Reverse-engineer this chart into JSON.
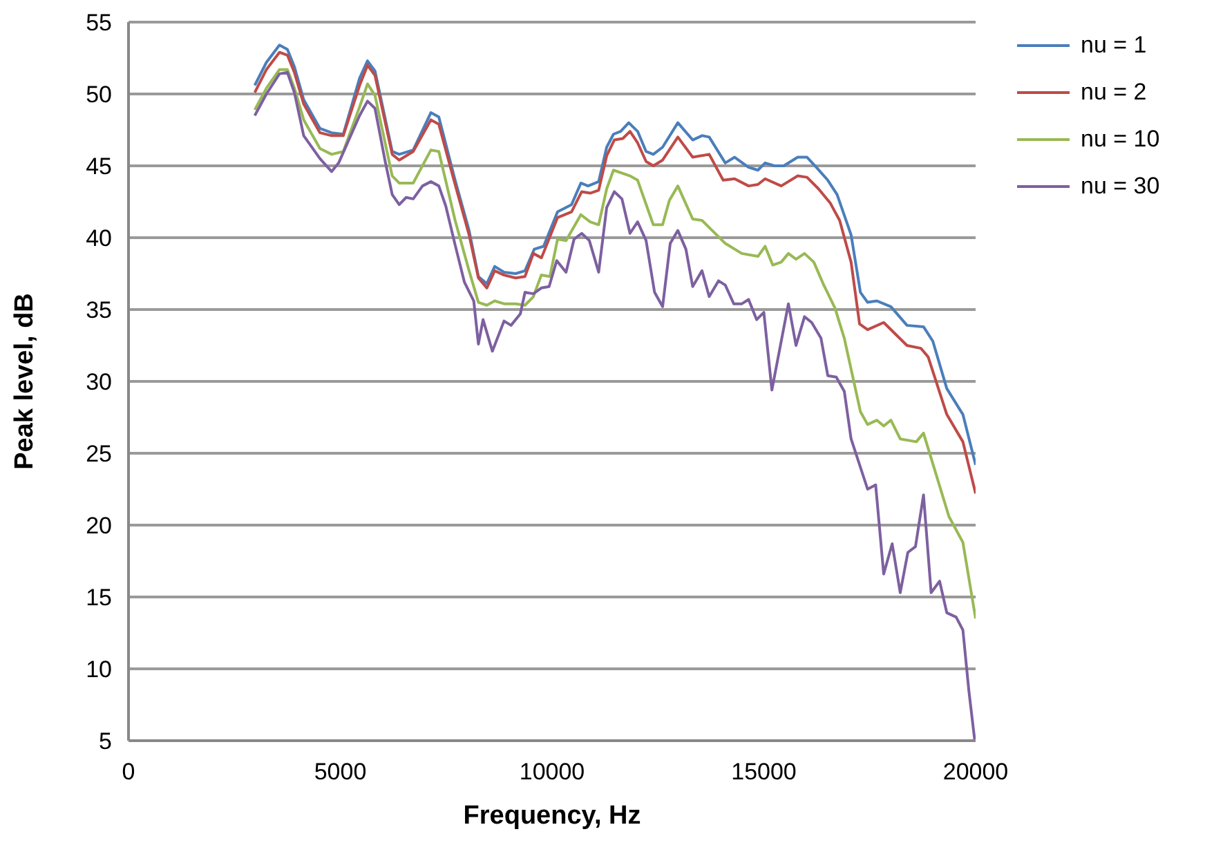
{
  "chart_data": {
    "type": "line",
    "xlabel": "Frequency, Hz",
    "ylabel": "Peak level, dB",
    "xlim": [
      0,
      20000
    ],
    "xticks": [
      0,
      5000,
      10000,
      15000,
      20000
    ],
    "ylim": [
      5,
      55
    ],
    "yticks": [
      5,
      10,
      15,
      20,
      25,
      30,
      35,
      40,
      45,
      50,
      55
    ],
    "grid": "y",
    "legend": "right",
    "series": [
      {
        "name": "nu = 1",
        "color": "#4a7ebb",
        "x": [
          2981,
          3256,
          3564,
          3751,
          3916,
          4136,
          4521,
          4796,
          5071,
          5456,
          5643,
          5819,
          6226,
          6391,
          6721,
          7139,
          7326,
          7711,
          8041,
          8261,
          8459,
          8646,
          8866,
          9141,
          9361,
          9580,
          9800,
          10130,
          10460,
          10680,
          10850,
          11100,
          11290,
          11450,
          11620,
          11810,
          12020,
          12220,
          12390,
          12610,
          12970,
          13320,
          13540,
          13710,
          14090,
          14310,
          14640,
          14860,
          15030,
          15250,
          15470,
          15800,
          16020,
          16240,
          16510,
          16730,
          17060,
          17280,
          17450,
          17670,
          18000,
          18380,
          18770,
          18990,
          19320,
          19700,
          20000
        ],
        "values": [
          50.6,
          52.2,
          53.4,
          53.1,
          51.9,
          49.6,
          47.6,
          47.3,
          47.2,
          51.1,
          52.3,
          51.6,
          46.0,
          45.8,
          46.1,
          48.7,
          48.4,
          44.0,
          40.5,
          37.3,
          36.8,
          38.0,
          37.6,
          37.5,
          37.7,
          39.2,
          39.4,
          41.8,
          42.3,
          43.8,
          43.6,
          43.9,
          46.3,
          47.2,
          47.4,
          48.0,
          47.4,
          46.0,
          45.8,
          46.3,
          48.0,
          46.8,
          47.1,
          47.0,
          45.2,
          45.6,
          44.9,
          44.7,
          45.2,
          45.0,
          45.0,
          45.6,
          45.6,
          44.9,
          44.0,
          43.0,
          40.2,
          36.2,
          35.5,
          35.6,
          35.2,
          33.9,
          33.8,
          32.8,
          29.5,
          27.7,
          24.2
        ]
      },
      {
        "name": "nu = 2",
        "color": "#be4b48",
        "x": [
          2981,
          3256,
          3564,
          3751,
          3916,
          4136,
          4521,
          4796,
          5071,
          5456,
          5643,
          5819,
          6226,
          6391,
          6721,
          7139,
          7326,
          7711,
          8041,
          8261,
          8459,
          8646,
          8866,
          9141,
          9361,
          9559,
          9750,
          10130,
          10460,
          10700,
          10900,
          11100,
          11290,
          11470,
          11670,
          11840,
          12020,
          12220,
          12390,
          12610,
          12970,
          13320,
          13710,
          14040,
          14310,
          14640,
          14860,
          15030,
          15410,
          15800,
          16020,
          16290,
          16570,
          16790,
          17060,
          17260,
          17450,
          17830,
          18380,
          18710,
          18880,
          19320,
          19700,
          20000
        ],
        "values": [
          50.1,
          51.7,
          52.9,
          52.7,
          51.5,
          49.3,
          47.3,
          47.1,
          47.1,
          50.6,
          52.0,
          51.3,
          45.8,
          45.4,
          46.0,
          48.2,
          47.9,
          43.7,
          40.2,
          37.2,
          36.5,
          37.7,
          37.4,
          37.2,
          37.3,
          38.9,
          38.6,
          41.4,
          41.8,
          43.2,
          43.1,
          43.3,
          45.7,
          46.8,
          46.9,
          47.4,
          46.6,
          45.3,
          45.0,
          45.4,
          47.0,
          45.6,
          45.8,
          44.0,
          44.1,
          43.6,
          43.7,
          44.1,
          43.6,
          44.3,
          44.2,
          43.4,
          42.4,
          41.2,
          38.3,
          34.0,
          33.6,
          34.1,
          32.5,
          32.3,
          31.7,
          27.7,
          25.8,
          22.2
        ]
      },
      {
        "name": "nu = 10",
        "color": "#98b954",
        "x": [
          2981,
          3256,
          3564,
          3751,
          3916,
          4136,
          4521,
          4796,
          5071,
          5456,
          5643,
          5819,
          6226,
          6391,
          6721,
          7139,
          7326,
          7711,
          8041,
          8261,
          8459,
          8646,
          8866,
          9141,
          9361,
          9559,
          9746,
          9950,
          10130,
          10330,
          10680,
          10900,
          11100,
          11290,
          11450,
          11840,
          12020,
          12390,
          12610,
          12770,
          12970,
          13320,
          13540,
          14090,
          14480,
          14860,
          15030,
          15210,
          15410,
          15580,
          15760,
          15960,
          16180,
          16400,
          16680,
          16900,
          17280,
          17450,
          17670,
          17830,
          18000,
          18220,
          18600,
          18770,
          19370,
          19700,
          20000
        ],
        "values": [
          48.9,
          50.4,
          51.7,
          51.7,
          50.4,
          48.2,
          46.2,
          45.8,
          46.0,
          49.1,
          50.7,
          49.9,
          44.3,
          43.8,
          43.8,
          46.1,
          46.0,
          41.2,
          37.7,
          35.5,
          35.3,
          35.6,
          35.4,
          35.4,
          35.3,
          35.9,
          37.4,
          37.3,
          39.9,
          39.8,
          41.6,
          41.1,
          40.9,
          43.4,
          44.7,
          44.3,
          44.0,
          40.9,
          40.9,
          42.6,
          43.6,
          41.3,
          41.2,
          39.6,
          38.9,
          38.7,
          39.4,
          38.1,
          38.3,
          38.9,
          38.5,
          38.9,
          38.3,
          36.8,
          35.1,
          33.0,
          27.9,
          27.0,
          27.3,
          26.9,
          27.3,
          26.0,
          25.8,
          26.4,
          20.6,
          18.8,
          13.5
        ]
      },
      {
        "name": "nu = 30",
        "color": "#7d60a0",
        "x": [
          2981,
          3256,
          3564,
          3751,
          3916,
          4136,
          4521,
          4796,
          4961,
          5456,
          5643,
          5819,
          6061,
          6226,
          6391,
          6556,
          6721,
          6941,
          7139,
          7326,
          7491,
          7711,
          7931,
          8151,
          8261,
          8371,
          8591,
          8866,
          9031,
          9251,
          9361,
          9559,
          9746,
          9930,
          10110,
          10330,
          10520,
          10700,
          10880,
          11100,
          11290,
          11470,
          11650,
          11840,
          12020,
          12220,
          12420,
          12610,
          12790,
          12970,
          13160,
          13320,
          13540,
          13710,
          13930,
          14090,
          14290,
          14480,
          14640,
          14830,
          15000,
          15190,
          15580,
          15760,
          15960,
          16130,
          16350,
          16510,
          16710,
          16900,
          17060,
          17450,
          17640,
          17830,
          18030,
          18220,
          18400,
          18580,
          18770,
          18950,
          19150,
          19320,
          19540,
          19700,
          19840,
          19980
        ],
        "values": [
          48.5,
          50.0,
          51.4,
          51.5,
          50.1,
          47.1,
          45.5,
          44.6,
          45.2,
          48.5,
          49.5,
          49.0,
          45.3,
          43.0,
          42.3,
          42.8,
          42.7,
          43.6,
          43.9,
          43.6,
          42.2,
          39.5,
          36.9,
          35.6,
          32.6,
          34.3,
          32.1,
          34.2,
          33.9,
          34.7,
          36.2,
          36.1,
          36.5,
          36.6,
          38.4,
          37.6,
          39.9,
          40.3,
          39.8,
          37.6,
          42.1,
          43.2,
          42.7,
          40.3,
          41.1,
          39.8,
          36.2,
          35.2,
          39.6,
          40.5,
          39.2,
          36.6,
          37.7,
          35.9,
          37.0,
          36.7,
          35.4,
          35.4,
          35.7,
          34.3,
          34.8,
          29.4,
          35.4,
          32.5,
          34.5,
          34.1,
          33.0,
          30.4,
          30.3,
          29.3,
          26.0,
          22.5,
          22.8,
          16.6,
          18.7,
          15.3,
          18.1,
          18.5,
          22.1,
          15.3,
          16.1,
          13.9,
          13.6,
          12.7,
          8.5,
          5.0
        ]
      }
    ]
  }
}
